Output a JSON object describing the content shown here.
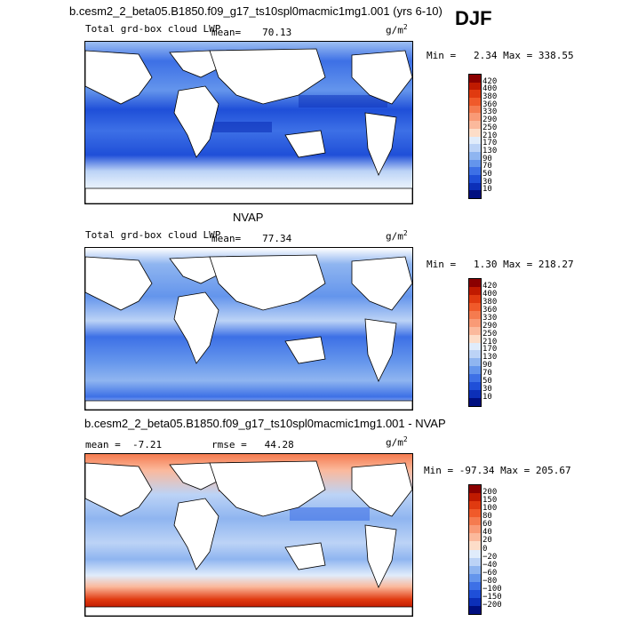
{
  "season": "DJF",
  "chart_data": [
    {
      "type": "heatmap",
      "title": "b.cesm2_2_beta05.B1850.f09_g17_ts10spl0macmic1mg1.001 (yrs 6-10)",
      "variable": "Total grd-box cloud LWP",
      "units": "g/m",
      "units_exp": "2",
      "mean_label": "mean=",
      "mean": "70.13",
      "min_label": "Min =",
      "min": "2.34",
      "max_label": "Max =",
      "max": "338.55",
      "colorbar_levels": [
        "420",
        "400",
        "380",
        "360",
        "330",
        "290",
        "250",
        "210",
        "170",
        "130",
        "90",
        "70",
        "50",
        "30",
        "10"
      ],
      "colorbar_colors": [
        "#8b0000",
        "#c01a00",
        "#e03a10",
        "#f05a2a",
        "#f57b4f",
        "#f99a76",
        "#fbb99c",
        "#fdddc8",
        "#e0ecfb",
        "#bcd3f6",
        "#8fb5f0",
        "#6495ec",
        "#3d70e6",
        "#1f4fd8",
        "#0c2fb8",
        "#000f80"
      ]
    },
    {
      "type": "heatmap",
      "title": "NVAP",
      "variable": "Total grd-box cloud LWP",
      "units": "g/m",
      "units_exp": "2",
      "mean_label": "mean=",
      "mean": "77.34",
      "min_label": "Min =",
      "min": "1.30",
      "max_label": "Max =",
      "max": "218.27",
      "colorbar_levels": [
        "420",
        "400",
        "380",
        "360",
        "330",
        "290",
        "250",
        "210",
        "170",
        "130",
        "90",
        "70",
        "50",
        "30",
        "10"
      ],
      "colorbar_colors": [
        "#8b0000",
        "#c01a00",
        "#e03a10",
        "#f05a2a",
        "#f57b4f",
        "#f99a76",
        "#fbb99c",
        "#fdddc8",
        "#e0ecfb",
        "#bcd3f6",
        "#8fb5f0",
        "#6495ec",
        "#3d70e6",
        "#1f4fd8",
        "#0c2fb8",
        "#000f80"
      ]
    },
    {
      "type": "heatmap",
      "title": "b.cesm2_2_beta05.B1850.f09_g17_ts10spl0macmic1mg1.001 - NVAP",
      "variable": "",
      "units": "g/m",
      "units_exp": "2",
      "mean_label": "mean =",
      "mean": "-7.21",
      "rmse_label": "rmse =",
      "rmse": "44.28",
      "min_label": "Min =",
      "min": "-97.34",
      "max_label": "Max =",
      "max": "205.67",
      "colorbar_levels": [
        "200",
        "150",
        "100",
        "80",
        "60",
        "40",
        "20",
        "0",
        "−20",
        "−40",
        "−60",
        "−80",
        "−100",
        "−150",
        "−200"
      ],
      "colorbar_colors": [
        "#8b0000",
        "#c01a00",
        "#e03a10",
        "#f05a2a",
        "#f57b4f",
        "#f99a76",
        "#fbb99c",
        "#fdddc8",
        "#e0ecfb",
        "#bcd3f6",
        "#8fb5f0",
        "#6495ec",
        "#3d70e6",
        "#1f4fd8",
        "#0c2fb8",
        "#000f80"
      ]
    }
  ]
}
